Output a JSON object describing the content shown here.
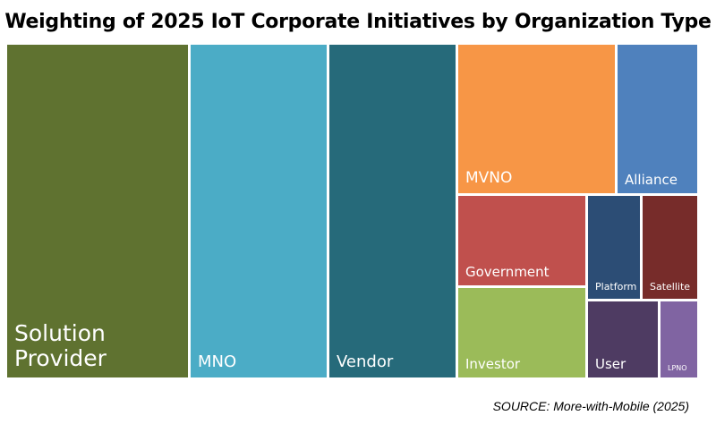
{
  "chart_data": {
    "type": "treemap",
    "title": "Weighting of 2025 IoT Corporate Initiatives by Organization Type",
    "categories": [
      "Solution Provider",
      "MNO",
      "Vendor",
      "MVNO",
      "Alliance",
      "Government",
      "Investor",
      "Platform",
      "Satellite",
      "User",
      "LPNO"
    ],
    "values": [
      26.5,
      19.9,
      18.5,
      10.5,
      5.3,
      5.2,
      5.2,
      2.5,
      2.6,
      2.5,
      1.3
    ],
    "colors": [
      "#5f7230",
      "#4bacc6",
      "#266a7a",
      "#f79646",
      "#4f81bd",
      "#c0504d",
      "#9bbb59",
      "#2c4d75",
      "#772c2a",
      "#4e3b62",
      "#8064a2"
    ],
    "legend": "none",
    "source": "SOURCE: More-with-Mobile (2025)"
  }
}
